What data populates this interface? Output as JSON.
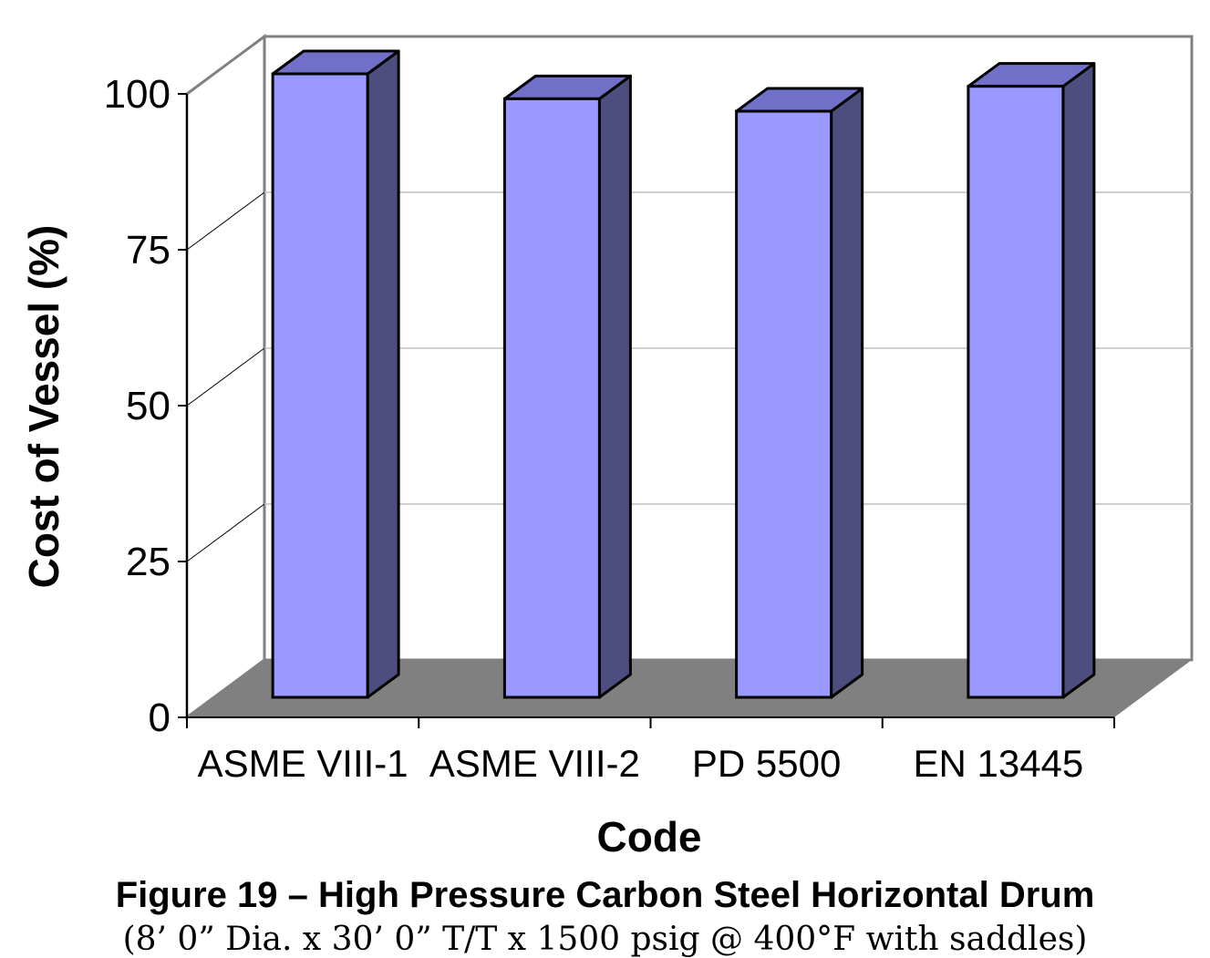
{
  "chart_data": {
    "type": "bar",
    "style": "3d-clustered-column",
    "categories": [
      "ASME VIII-1",
      "ASME VIII-2",
      "PD 5500",
      "EN 13445"
    ],
    "values": [
      100,
      96,
      94,
      98
    ],
    "xlabel": "Code",
    "ylabel": "Cost of Vessel (%)",
    "ylim": [
      0,
      100
    ],
    "yticks": [
      0,
      25,
      50,
      75,
      100
    ],
    "grid": true,
    "legend": "none",
    "colors": {
      "bar_front": "#9999ff",
      "bar_top": "#7070c8",
      "bar_side": "#4d4d80",
      "floor": "#808080",
      "grid": "#c0c0c0",
      "wall": "#808080"
    }
  },
  "caption": {
    "title": "Figure 19 – High Pressure Carbon Steel Horizontal Drum",
    "subtitle": "(8’ 0” Dia. x 30’ 0” T/T x 1500 psig @ 400°F with saddles)"
  }
}
